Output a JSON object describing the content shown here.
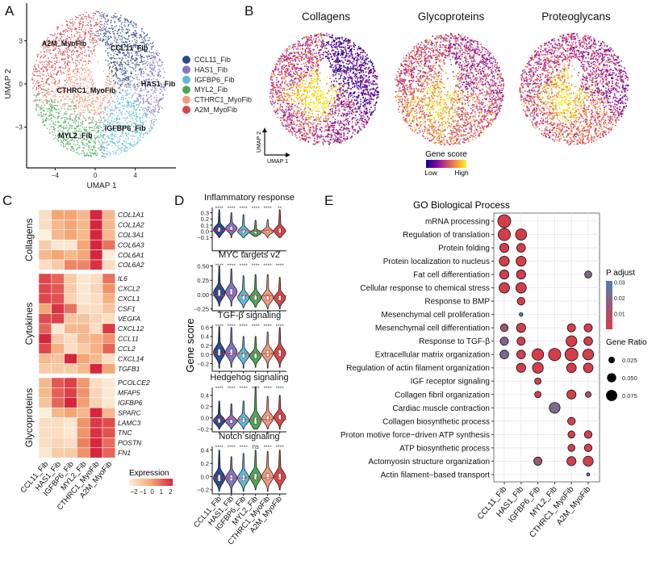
{
  "panel_labels": {
    "a": "A",
    "b": "B",
    "c": "C",
    "d": "D",
    "e": "E"
  },
  "chart_data": [
    {
      "type": "scatter",
      "xlabel": "UMAP 1",
      "ylabel": "UMAP 2",
      "xticks": [
        -4,
        0,
        4
      ],
      "yticks": [
        -3,
        0,
        3
      ],
      "clusters": [
        {
          "name": "CCL11_Fib",
          "color": "#2f4b8c",
          "label_at": [
            3.4,
            2.5
          ]
        },
        {
          "name": "HAS1_Fib",
          "color": "#8474c2",
          "label_at": [
            6.3,
            0
          ]
        },
        {
          "name": "IGFBP6_Fib",
          "color": "#5db9d6",
          "label_at": [
            3.0,
            -3.1
          ]
        },
        {
          "name": "MYL2_Fib",
          "color": "#4ea65b",
          "label_at": [
            -2.0,
            -3.6
          ]
        },
        {
          "name": "CTHRC1_MyoFib",
          "color": "#ee9b7c",
          "label_at": [
            -0.9,
            -0.45
          ]
        },
        {
          "name": "A2M_MyoFib",
          "color": "#d5474b",
          "label_at": [
            -3.1,
            2.8
          ]
        }
      ],
      "legend": "right"
    },
    {
      "type": "scatter",
      "panels": [
        "Collagens",
        "Glycoproteins",
        "Proteoglycans"
      ],
      "xlabel": "UMAP 1",
      "ylabel": "UMAP 2",
      "legend": {
        "title": "Gene score",
        "low": "Low",
        "high": "High",
        "colormap": "plasma"
      }
    },
    {
      "type": "heatmap",
      "columns": [
        "CCL11_Fib",
        "HAS1_Fib",
        "IGFBP6_Fib",
        "MYL2_Fib",
        "CTHRC1_MyoFib",
        "A2M_MyoFib"
      ],
      "groups": [
        {
          "name": "Collagens",
          "genes": [
            "COL1A1",
            "COL1A2",
            "COL3A1",
            "COL6A3",
            "COL6A1",
            "COL6A2"
          ],
          "values": [
            [
              -1.5,
              0,
              0,
              -0.5,
              2,
              -0.5
            ],
            [
              -1.5,
              -0.5,
              0,
              -0.5,
              2.2,
              -0.5
            ],
            [
              -2,
              -0.5,
              0,
              -0.5,
              2,
              -0.5
            ],
            [
              -1,
              -1.8,
              -1.8,
              0,
              2,
              0.8
            ],
            [
              -0.5,
              0,
              -0.5,
              0,
              2,
              -2
            ],
            [
              -1.5,
              -1,
              0.5,
              0.5,
              1.8,
              -1.5
            ]
          ]
        },
        {
          "name": "Cytokines",
          "genes": [
            "IL6",
            "CXCL2",
            "CXCL1",
            "CSF1",
            "VEGFA",
            "CXCL12",
            "CCL11",
            "CCL2",
            "CXCL14",
            "TGFB1"
          ],
          "values": [
            [
              1.5,
              1,
              -1,
              -1.8,
              -1.5,
              0.8
            ],
            [
              1.5,
              1.2,
              -1,
              -1.8,
              -1.3,
              0.3
            ],
            [
              1.5,
              1.3,
              -1.2,
              -1.8,
              -1.5,
              -0.3
            ],
            [
              0,
              1.8,
              0.8,
              -1.5,
              -1.5,
              -0.8
            ],
            [
              1.4,
              1.6,
              -0.8,
              -0.8,
              -1.3,
              -1.5
            ],
            [
              1,
              -1.8,
              -0.5,
              -0.5,
              -1.5,
              1.7
            ],
            [
              2.2,
              -1,
              -1.5,
              -0.5,
              -0.3,
              0.3
            ],
            [
              1.5,
              -0.3,
              -1.5,
              -1,
              -0.3,
              1
            ],
            [
              -0.5,
              -0.8,
              2.3,
              0,
              -0.5,
              -1.5
            ],
            [
              -1,
              -1,
              -1,
              -0.5,
              2.2,
              0
            ]
          ]
        },
        {
          "name": "Glycoproteins",
          "genes": [
            "PCOLCE2",
            "MFAP5",
            "IGFBP6",
            "SPARC",
            "LAMC3",
            "TNC",
            "POSTN",
            "FN1"
          ],
          "values": [
            [
              -0.5,
              1.2,
              1.6,
              0.2,
              -1.5,
              -1.8
            ],
            [
              -0.5,
              1.1,
              1.6,
              0.3,
              -1.3,
              -1.8
            ],
            [
              -0.8,
              1,
              2,
              0.1,
              -1.2,
              -1.8
            ],
            [
              -2,
              -0.5,
              0,
              -0.5,
              2.2,
              -0.5
            ],
            [
              -1.5,
              -1.5,
              -1.8,
              0.3,
              1.7,
              1.4
            ],
            [
              -1.5,
              -1.5,
              -1.8,
              0.3,
              1.8,
              1.3
            ],
            [
              -1.5,
              -1.3,
              -1.5,
              0.6,
              2,
              0.9
            ],
            [
              -1.8,
              -1,
              -1,
              0.3,
              2,
              1
            ]
          ]
        }
      ],
      "legend": {
        "title": "Expression",
        "ticks": [
          "−2",
          "−1",
          "0",
          "1",
          "2"
        ],
        "range": [
          -2,
          2
        ],
        "colors": [
          "#fcefdc",
          "#f4a673",
          "#d6263e"
        ]
      }
    },
    {
      "type": "violin",
      "categories": [
        "CCL11_Fib",
        "HAS1_Fib",
        "IGFBP6_Fib",
        "MYL2_Fib",
        "CTHRC1_MyoFib",
        "A2M_MyoFib"
      ],
      "ylabel": "Gene score",
      "reference_line_color": "#e0303f",
      "panels": [
        {
          "title": "Inflammatory response",
          "yticks": [
            "0.3",
            "0.2",
            "0.1",
            "0.0",
            "−0.1"
          ],
          "ytick_values": [
            0.3,
            0.2,
            0.1,
            0,
            -0.1
          ],
          "significance": [
            "****",
            "****",
            "****",
            "****",
            "****",
            "**"
          ],
          "reference": 0.01,
          "median": [
            0.03,
            0.05,
            0.0,
            -0.02,
            0.0,
            0.01
          ],
          "max": [
            0.35,
            0.3,
            0.27,
            0.18,
            0.19,
            0.35
          ],
          "min": [
            -0.1,
            -0.1,
            -0.1,
            -0.08,
            -0.1,
            -0.1
          ]
        },
        {
          "title": "MYC targets v2",
          "yticks": [
            "0.50",
            "0.25",
            "0.00",
            "−0.25"
          ],
          "ytick_values": [
            0.5,
            0.25,
            0,
            -0.25
          ],
          "significance": [
            "****",
            "****",
            "****",
            "****",
            "****",
            "****"
          ],
          "reference": -0.02,
          "median": [
            0.03,
            0.05,
            -0.05,
            -0.05,
            -0.05,
            -0.06
          ],
          "max": [
            0.5,
            0.45,
            0.33,
            0.35,
            0.35,
            0.3
          ],
          "min": [
            -0.2,
            -0.2,
            -0.23,
            -0.22,
            -0.25,
            -0.25
          ]
        },
        {
          "title": "TGF-β signaling",
          "yticks": [
            "0.6",
            "0.4",
            "0.2",
            "0.0",
            "−0.2"
          ],
          "ytick_values": [
            0.6,
            0.4,
            0.2,
            0,
            -0.2
          ],
          "significance": [
            "****",
            "****",
            "****",
            "****",
            "****",
            "****"
          ],
          "reference": 0.02,
          "median": [
            0.05,
            0.05,
            -0.02,
            -0.03,
            0.03,
            0.03
          ],
          "max": [
            0.62,
            0.6,
            0.4,
            0.4,
            0.5,
            0.6
          ],
          "min": [
            -0.3,
            -0.28,
            -0.3,
            -0.28,
            -0.3,
            -0.28
          ]
        },
        {
          "title": "Hedgehog signaling",
          "yticks": [
            "0.4",
            "0.2",
            "0.0",
            "−0.2"
          ],
          "ytick_values": [
            0.4,
            0.2,
            0,
            -0.2
          ],
          "significance": [
            "****",
            "****",
            "****",
            "****",
            "****",
            "****"
          ],
          "reference": -0.03,
          "median": [
            -0.05,
            -0.06,
            -0.04,
            -0.05,
            -0.01,
            0.01
          ],
          "max": [
            0.3,
            0.25,
            0.3,
            0.55,
            0.38,
            0.4
          ],
          "min": [
            -0.2,
            -0.2,
            -0.2,
            -0.2,
            -0.2,
            -0.2
          ]
        },
        {
          "title": "Notch signaling",
          "yticks": [
            "0.4",
            "0.2",
            "0.0",
            "−0.2"
          ],
          "ytick_values": [
            0.4,
            0.2,
            0,
            -0.2
          ],
          "significance": [
            "****",
            "****",
            "****",
            "ns",
            "****",
            "****"
          ],
          "reference": -0.02,
          "median": [
            -0.02,
            -0.02,
            -0.02,
            0.0,
            0.0,
            0.0
          ],
          "max": [
            0.4,
            0.3,
            0.35,
            0.4,
            0.38,
            0.4
          ],
          "min": [
            -0.22,
            -0.25,
            -0.22,
            -0.2,
            -0.22,
            -0.2
          ]
        }
      ]
    },
    {
      "type": "dot",
      "title": "GO Biological Process",
      "categories": [
        "CCL11_Fib",
        "HAS1_Fib",
        "IGFBP6_Fib",
        "MYL2_Fib",
        "CTHRC1_MyoFib",
        "A2M_MyoFib"
      ],
      "terms": [
        "mRNA processing",
        "Regulation of translation",
        "Protein folding",
        "Protein localization to nucleus",
        "Fat cell differentiation",
        "Cellular response to chemical stress",
        "Response to BMP",
        "Mesenchymal cell proliferation",
        "Mesenchymal cell differentiation",
        "Response to TGF-β",
        "Extracellular matrix organization",
        "Regulation of actin filament organization",
        "IGF receptor signaling",
        "Collagen fibril organization",
        "Cardiac muscle contraction",
        "Collagen biosynthetic process",
        "Proton motive force−driven ATP synthesis",
        "ATP biosynthetic process",
        "Actomyosin structure organization",
        "Actin filament−based transport"
      ],
      "dots": [
        {
          "term": 0,
          "cluster": 0,
          "gene_ratio": 0.1,
          "p_adjust": 0.002
        },
        {
          "term": 1,
          "cluster": 0,
          "gene_ratio": 0.09,
          "p_adjust": 0.002
        },
        {
          "term": 1,
          "cluster": 1,
          "gene_ratio": 0.075,
          "p_adjust": 0.002
        },
        {
          "term": 2,
          "cluster": 0,
          "gene_ratio": 0.05,
          "p_adjust": 0.002
        },
        {
          "term": 2,
          "cluster": 1,
          "gene_ratio": 0.045,
          "p_adjust": 0.002
        },
        {
          "term": 3,
          "cluster": 0,
          "gene_ratio": 0.06,
          "p_adjust": 0.002
        },
        {
          "term": 3,
          "cluster": 1,
          "gene_ratio": 0.06,
          "p_adjust": 0.002
        },
        {
          "term": 4,
          "cluster": 0,
          "gene_ratio": 0.05,
          "p_adjust": 0.002
        },
        {
          "term": 4,
          "cluster": 1,
          "gene_ratio": 0.05,
          "p_adjust": 0.002
        },
        {
          "term": 4,
          "cluster": 5,
          "gene_ratio": 0.03,
          "p_adjust": 0.02
        },
        {
          "term": 5,
          "cluster": 0,
          "gene_ratio": 0.065,
          "p_adjust": 0.002
        },
        {
          "term": 5,
          "cluster": 1,
          "gene_ratio": 0.065,
          "p_adjust": 0.002
        },
        {
          "term": 6,
          "cluster": 1,
          "gene_ratio": 0.035,
          "p_adjust": 0.003
        },
        {
          "term": 7,
          "cluster": 1,
          "gene_ratio": 0.008,
          "p_adjust": 0.03
        },
        {
          "term": 8,
          "cluster": 0,
          "gene_ratio": 0.035,
          "p_adjust": 0.015
        },
        {
          "term": 8,
          "cluster": 1,
          "gene_ratio": 0.05,
          "p_adjust": 0.003
        },
        {
          "term": 8,
          "cluster": 4,
          "gene_ratio": 0.04,
          "p_adjust": 0.002
        },
        {
          "term": 8,
          "cluster": 5,
          "gene_ratio": 0.04,
          "p_adjust": 0.002
        },
        {
          "term": 9,
          "cluster": 0,
          "gene_ratio": 0.04,
          "p_adjust": 0.02
        },
        {
          "term": 9,
          "cluster": 1,
          "gene_ratio": 0.04,
          "p_adjust": 0.004
        },
        {
          "term": 9,
          "cluster": 4,
          "gene_ratio": 0.07,
          "p_adjust": 0.002
        },
        {
          "term": 9,
          "cluster": 5,
          "gene_ratio": 0.045,
          "p_adjust": 0.002
        },
        {
          "term": 10,
          "cluster": 0,
          "gene_ratio": 0.045,
          "p_adjust": 0.022
        },
        {
          "term": 10,
          "cluster": 1,
          "gene_ratio": 0.045,
          "p_adjust": 0.004
        },
        {
          "term": 10,
          "cluster": 2,
          "gene_ratio": 0.08,
          "p_adjust": 0.002
        },
        {
          "term": 10,
          "cluster": 3,
          "gene_ratio": 0.09,
          "p_adjust": 0.002
        },
        {
          "term": 10,
          "cluster": 4,
          "gene_ratio": 0.1,
          "p_adjust": 0.002
        },
        {
          "term": 10,
          "cluster": 5,
          "gene_ratio": 0.07,
          "p_adjust": 0.002
        },
        {
          "term": 11,
          "cluster": 1,
          "gene_ratio": 0.05,
          "p_adjust": 0.002
        },
        {
          "term": 11,
          "cluster": 2,
          "gene_ratio": 0.07,
          "p_adjust": 0.002
        },
        {
          "term": 11,
          "cluster": 4,
          "gene_ratio": 0.055,
          "p_adjust": 0.002
        },
        {
          "term": 11,
          "cluster": 5,
          "gene_ratio": 0.055,
          "p_adjust": 0.002
        },
        {
          "term": 12,
          "cluster": 2,
          "gene_ratio": 0.025,
          "p_adjust": 0.003
        },
        {
          "term": 13,
          "cluster": 2,
          "gene_ratio": 0.025,
          "p_adjust": 0.004
        },
        {
          "term": 13,
          "cluster": 4,
          "gene_ratio": 0.05,
          "p_adjust": 0.002
        },
        {
          "term": 13,
          "cluster": 5,
          "gene_ratio": 0.02,
          "p_adjust": 0.01
        },
        {
          "term": 14,
          "cluster": 3,
          "gene_ratio": 0.07,
          "p_adjust": 0.022
        },
        {
          "term": 15,
          "cluster": 4,
          "gene_ratio": 0.035,
          "p_adjust": 0.003
        },
        {
          "term": 16,
          "cluster": 4,
          "gene_ratio": 0.03,
          "p_adjust": 0.003
        },
        {
          "term": 16,
          "cluster": 5,
          "gene_ratio": 0.035,
          "p_adjust": 0.003
        },
        {
          "term": 17,
          "cluster": 4,
          "gene_ratio": 0.03,
          "p_adjust": 0.003
        },
        {
          "term": 17,
          "cluster": 5,
          "gene_ratio": 0.035,
          "p_adjust": 0.003
        },
        {
          "term": 18,
          "cluster": 2,
          "gene_ratio": 0.04,
          "p_adjust": 0.015
        },
        {
          "term": 18,
          "cluster": 4,
          "gene_ratio": 0.05,
          "p_adjust": 0.003
        },
        {
          "term": 18,
          "cluster": 5,
          "gene_ratio": 0.06,
          "p_adjust": 0.002
        },
        {
          "term": 19,
          "cluster": 5,
          "gene_ratio": 0.006,
          "p_adjust": 0.025
        }
      ],
      "color_legend": {
        "title": "P adjust",
        "ticks": [
          "0.03",
          "0.02",
          "0.01"
        ],
        "low_color": "#dc3a44",
        "high_color": "#4f7fb2"
      },
      "size_legend": {
        "title": "Gene Ratio",
        "values": [
          0.025,
          0.05,
          0.075
        ],
        "labels": [
          "0.025",
          "0.050",
          "0.075"
        ]
      },
      "grid": true
    }
  ]
}
